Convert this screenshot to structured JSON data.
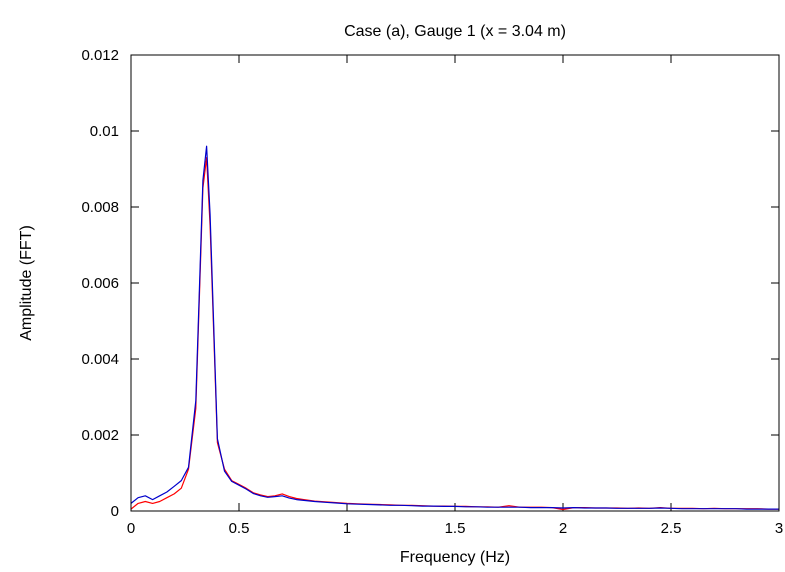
{
  "chart_data": {
    "type": "line",
    "title": "Case (a), Gauge 1 (x = 3.04 m)",
    "xlabel": "Frequency (Hz)",
    "ylabel": "Amplitude (FFT)",
    "xlim": [
      0,
      3
    ],
    "ylim": [
      0,
      0.012
    ],
    "xticks": [
      0,
      0.5,
      1,
      1.5,
      2,
      2.5,
      3
    ],
    "xtick_labels": [
      "0",
      "0.5",
      "1",
      "1.5",
      "2",
      "2.5",
      "3"
    ],
    "yticks": [
      0,
      0.002,
      0.004,
      0.006,
      0.008,
      0.01,
      0.012
    ],
    "ytick_labels": [
      "0",
      "0.002",
      "0.004",
      "0.006",
      "0.008",
      "0.01",
      "0.012"
    ],
    "grid": false,
    "series": [
      {
        "color": "#ff0000",
        "x": [
          0,
          0.033,
          0.066,
          0.1,
          0.133,
          0.166,
          0.2,
          0.233,
          0.266,
          0.3,
          0.333,
          0.35,
          0.366,
          0.4,
          0.433,
          0.466,
          0.5,
          0.533,
          0.566,
          0.6,
          0.633,
          0.666,
          0.7,
          0.733,
          0.766,
          0.8,
          0.85,
          0.9,
          0.95,
          1.0,
          1.05,
          1.1,
          1.15,
          1.2,
          1.25,
          1.3,
          1.35,
          1.4,
          1.45,
          1.5,
          1.55,
          1.6,
          1.65,
          1.7,
          1.75,
          1.8,
          1.85,
          1.9,
          1.95,
          2.0,
          2.05,
          2.1,
          2.15,
          2.2,
          2.25,
          2.3,
          2.35,
          2.4,
          2.45,
          2.5,
          2.55,
          2.6,
          2.65,
          2.7,
          2.75,
          2.8,
          2.85,
          2.9,
          2.95,
          3.0
        ],
        "values": [
          5e-05,
          0.0002,
          0.00025,
          0.0002,
          0.00025,
          0.00035,
          0.00045,
          0.0006,
          0.0011,
          0.0027,
          0.0085,
          0.0093,
          0.0075,
          0.0018,
          0.0011,
          0.0008,
          0.0007,
          0.0006,
          0.00048,
          0.00042,
          0.00038,
          0.0004,
          0.00045,
          0.00038,
          0.00033,
          0.0003,
          0.00026,
          0.00024,
          0.00022,
          0.0002,
          0.00019,
          0.00018,
          0.00017,
          0.00016,
          0.00015,
          0.00015,
          0.00014,
          0.00013,
          0.00013,
          0.00012,
          0.00012,
          0.00011,
          0.00011,
          0.0001,
          0.00014,
          0.0001,
          0.0001,
          0.0001,
          9e-05,
          4e-05,
          9e-05,
          9e-05,
          8e-05,
          8e-05,
          8e-05,
          7e-05,
          8e-05,
          7e-05,
          9e-05,
          7e-05,
          7e-05,
          7e-05,
          6e-05,
          7e-05,
          6e-05,
          6e-05,
          6e-05,
          6e-05,
          5e-05,
          5e-05
        ]
      },
      {
        "color": "#0000cc",
        "x": [
          0,
          0.033,
          0.066,
          0.1,
          0.133,
          0.166,
          0.2,
          0.233,
          0.266,
          0.3,
          0.333,
          0.35,
          0.366,
          0.4,
          0.433,
          0.466,
          0.5,
          0.533,
          0.566,
          0.6,
          0.633,
          0.666,
          0.7,
          0.733,
          0.766,
          0.8,
          0.85,
          0.9,
          0.95,
          1.0,
          1.05,
          1.1,
          1.15,
          1.2,
          1.25,
          1.3,
          1.35,
          1.4,
          1.45,
          1.5,
          1.55,
          1.6,
          1.65,
          1.7,
          1.75,
          1.8,
          1.85,
          1.9,
          1.95,
          2.0,
          2.05,
          2.1,
          2.15,
          2.2,
          2.25,
          2.3,
          2.35,
          2.4,
          2.45,
          2.5,
          2.55,
          2.6,
          2.65,
          2.7,
          2.75,
          2.8,
          2.85,
          2.9,
          2.95,
          3.0
        ],
        "values": [
          0.0002,
          0.00035,
          0.0004,
          0.0003,
          0.0004,
          0.0005,
          0.00065,
          0.0008,
          0.00115,
          0.0029,
          0.0087,
          0.0096,
          0.0078,
          0.0019,
          0.00105,
          0.00078,
          0.00068,
          0.00058,
          0.00046,
          0.0004,
          0.00036,
          0.00038,
          0.0004,
          0.00034,
          0.0003,
          0.00028,
          0.00025,
          0.00023,
          0.00021,
          0.00019,
          0.00018,
          0.00017,
          0.00016,
          0.00015,
          0.00015,
          0.00014,
          0.00013,
          0.00013,
          0.00012,
          0.00012,
          0.00011,
          0.00011,
          0.0001,
          0.0001,
          0.0001,
          0.0001,
          9e-05,
          9e-05,
          9e-05,
          8e-05,
          9e-05,
          8e-05,
          8e-05,
          8e-05,
          7e-05,
          7e-05,
          7e-05,
          7e-05,
          8e-05,
          7e-05,
          6e-05,
          6e-05,
          6e-05,
          6e-05,
          6e-05,
          6e-05,
          5e-05,
          5e-05,
          5e-05,
          5e-05
        ]
      }
    ]
  }
}
